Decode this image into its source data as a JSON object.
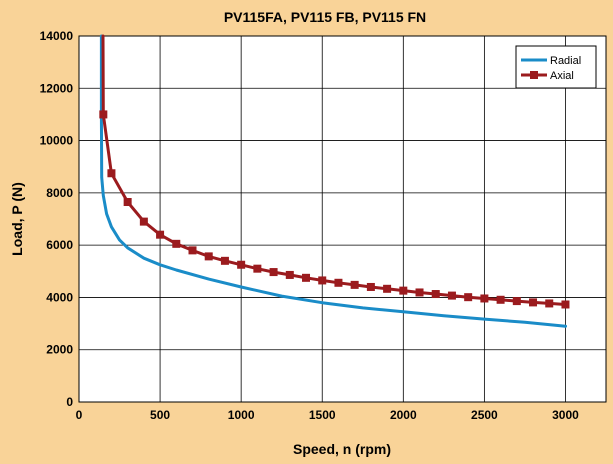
{
  "chart_data": {
    "type": "line",
    "title": "PV115FA, PV115 FB, PV115 FN",
    "xlabel": "Speed, n (rpm)",
    "ylabel": "Load, P (N)",
    "xlim": [
      0,
      3250
    ],
    "ylim": [
      0,
      14000
    ],
    "xticks": [
      0,
      500,
      1000,
      1500,
      2000,
      2500,
      3000
    ],
    "yticks": [
      0,
      2000,
      4000,
      6000,
      8000,
      10000,
      12000,
      14000
    ],
    "grid": true,
    "legend_position": "top-right",
    "series": [
      {
        "name": "Radial",
        "color": "#1a8cc8",
        "marker": "none",
        "x": [
          138,
          138,
          140,
          150,
          170,
          200,
          250,
          300,
          400,
          500,
          600,
          800,
          1000,
          1250,
          1500,
          1750,
          2000,
          2250,
          2500,
          2750,
          3000
        ],
        "y": [
          14000,
          11000,
          8600,
          7900,
          7200,
          6700,
          6200,
          5900,
          5500,
          5250,
          5050,
          4700,
          4400,
          4050,
          3800,
          3600,
          3450,
          3300,
          3170,
          3050,
          2900
        ]
      },
      {
        "name": "Axial",
        "color": "#9b1b1e",
        "marker": "square",
        "x": [
          148,
          150,
          200,
          300,
          400,
          500,
          600,
          700,
          800,
          900,
          1000,
          1100,
          1200,
          1300,
          1400,
          1500,
          1600,
          1700,
          1800,
          1900,
          2000,
          2100,
          2200,
          2300,
          2400,
          2500,
          2600,
          2700,
          2800,
          2900,
          3000
        ],
        "y": [
          14000,
          11000,
          8750,
          7650,
          6900,
          6400,
          6050,
          5800,
          5570,
          5400,
          5250,
          5100,
          4970,
          4860,
          4750,
          4650,
          4560,
          4480,
          4400,
          4330,
          4260,
          4190,
          4130,
          4070,
          4010,
          3960,
          3910,
          3860,
          3810,
          3770,
          3730
        ]
      }
    ]
  }
}
